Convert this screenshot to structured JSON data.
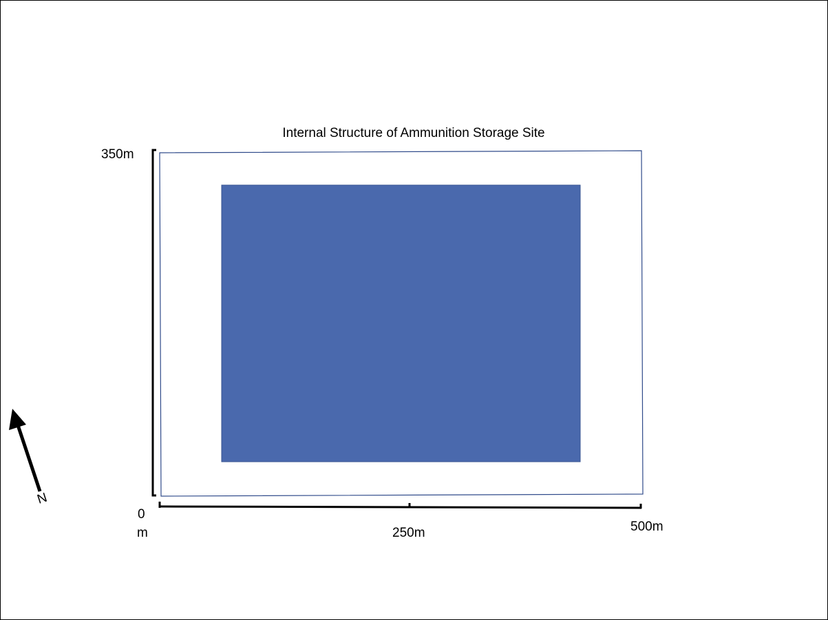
{
  "title": "Internal Structure of Ammunition Storage Site",
  "colors": {
    "site_boundary": "#2f4a8a",
    "storage_area": "#4a69ad",
    "storage_area_border": "#3a5592",
    "scale_bars": "#000000",
    "north_arrow": "#000000"
  },
  "vertical_scale": {
    "top_label": "350m"
  },
  "horizontal_scale": {
    "origin_label_line1": "0",
    "origin_label_line2": "m",
    "mid_label": "250m",
    "end_label": "500m"
  },
  "north_arrow": {
    "label": "N",
    "icon": "north-arrow-icon"
  }
}
